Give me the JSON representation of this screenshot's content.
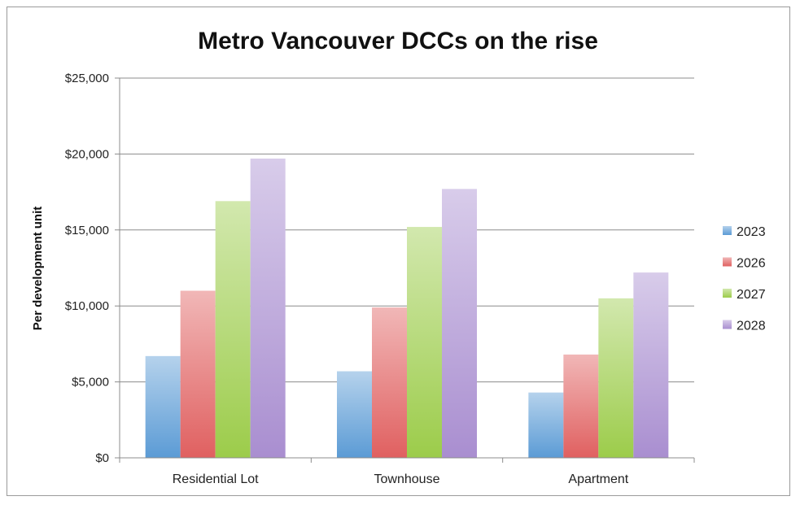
{
  "chart_data": {
    "type": "bar",
    "title": "Metro Vancouver DCCs on the rise",
    "xlabel": "",
    "ylabel": "Per development unit",
    "categories": [
      "Residential Lot",
      "Townhouse",
      "Apartment"
    ],
    "series": [
      {
        "name": "2023",
        "values": [
          6700,
          5700,
          4300
        ],
        "color": "#5b9bd5"
      },
      {
        "name": "2026",
        "values": [
          11000,
          9900,
          6800
        ],
        "color": "#e06060"
      },
      {
        "name": "2027",
        "values": [
          16900,
          15200,
          10500
        ],
        "color": "#9ccc4a"
      },
      {
        "name": "2028",
        "values": [
          19700,
          17700,
          12200
        ],
        "color": "#a98ed0"
      }
    ],
    "ylim": [
      0,
      25000
    ],
    "yticks": [
      0,
      5000,
      10000,
      15000,
      20000,
      25000
    ],
    "ytick_labels": [
      "$0",
      "$5,000",
      "$10,000",
      "$15,000",
      "$20,000",
      "$25,000"
    ],
    "grid": true,
    "legend": "right"
  }
}
